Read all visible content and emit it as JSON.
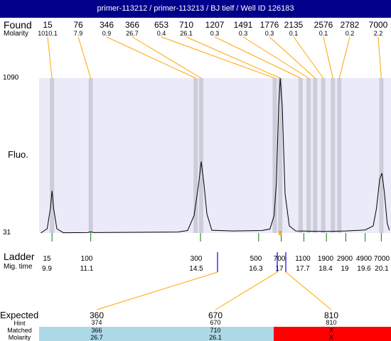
{
  "title": "primer-113212 / primer-113213 / BJ tielf / Well ID 126183",
  "labels": {
    "found": "Found",
    "molarity": "Molarity",
    "fluo": "Fluo.",
    "ladder": "Ladder",
    "mig_time": "Mig. time",
    "expected": "Expected",
    "hint": "Hint",
    "matched": "Matched",
    "molarity2": "Molarity"
  },
  "colors": {
    "title_bar": "#00008b",
    "plot_bg": "#eaeaf8",
    "band": "#c8c8d4",
    "trace": "#000000",
    "found_line": "#ffa500",
    "ladder_tick": "#008000",
    "matched_ok": "#add8e6",
    "matched_fail": "#ff0000",
    "marker": "#0000ff"
  },
  "found_peaks": [
    {
      "size": "15",
      "molarity": "1010.1"
    },
    {
      "size": "76",
      "molarity": "7.9"
    },
    {
      "size": "346",
      "molarity": "0.9"
    },
    {
      "size": "366",
      "molarity": "26.7"
    },
    {
      "size": "653",
      "molarity": "0.4"
    },
    {
      "size": "710",
      "molarity": "26.1"
    },
    {
      "size": "1207",
      "molarity": "0.3"
    },
    {
      "size": "1491",
      "molarity": "0.3"
    },
    {
      "size": "1776",
      "molarity": "0.3"
    },
    {
      "size": "2135",
      "molarity": "0.1"
    },
    {
      "size": "2576",
      "molarity": "0.1"
    },
    {
      "size": "2782",
      "molarity": "0.2"
    },
    {
      "size": "7000",
      "molarity": "2.2"
    }
  ],
  "ladder": [
    {
      "size": "15",
      "time": "9.9"
    },
    {
      "size": "100",
      "time": "11.1"
    },
    {
      "size": "300",
      "time": "14.5"
    },
    {
      "size": "500",
      "time": "16.3"
    },
    {
      "size": "700",
      "time": "17"
    },
    {
      "size": "1100",
      "time": "17.7"
    },
    {
      "size": "1900",
      "time": "18.4"
    },
    {
      "size": "2900",
      "time": "19"
    },
    {
      "size": "4900",
      "time": "19.6"
    },
    {
      "size": "7000",
      "time": "20.1"
    }
  ],
  "expected": [
    {
      "size": "360",
      "hint": "374",
      "matched": "366",
      "molarity": "26.7",
      "status": "ok"
    },
    {
      "size": "670",
      "hint": "670",
      "matched": "710",
      "molarity": "26.1",
      "status": "ok"
    },
    {
      "size": "810",
      "hint": "810",
      "matched": "X",
      "molarity": "X",
      "status": "fail"
    }
  ],
  "chart_data": {
    "type": "line",
    "x_axis": "migration time",
    "y_axis_ticks": [
      "1090",
      "31"
    ],
    "ylim": [
      31,
      1090
    ],
    "ylabel": "Fluo.",
    "series": [
      {
        "points": [
          [
            9.55,
            31
          ],
          [
            9.75,
            60
          ],
          [
            9.85,
            200
          ],
          [
            9.9,
            320
          ],
          [
            9.95,
            200
          ],
          [
            10.05,
            60
          ],
          [
            10.25,
            33
          ],
          [
            11.0,
            34
          ],
          [
            11.1,
            39
          ],
          [
            11.2,
            34
          ],
          [
            13.8,
            38
          ],
          [
            14.1,
            48
          ],
          [
            14.3,
            150
          ],
          [
            14.45,
            380
          ],
          [
            14.52,
            520
          ],
          [
            14.6,
            380
          ],
          [
            14.7,
            160
          ],
          [
            14.85,
            50
          ],
          [
            15.5,
            45
          ],
          [
            16.4,
            48
          ],
          [
            16.65,
            58
          ],
          [
            16.78,
            150
          ],
          [
            16.85,
            380
          ],
          [
            16.92,
            900
          ],
          [
            16.97,
            1090
          ],
          [
            17.03,
            900
          ],
          [
            17.12,
            300
          ],
          [
            17.25,
            80
          ],
          [
            17.45,
            45
          ],
          [
            18.0,
            43
          ],
          [
            18.4,
            42
          ],
          [
            19.0,
            45
          ],
          [
            19.6,
            52
          ],
          [
            19.85,
            80
          ],
          [
            19.95,
            200
          ],
          [
            20.05,
            400
          ],
          [
            20.12,
            440
          ],
          [
            20.2,
            300
          ],
          [
            20.28,
            100
          ],
          [
            20.35,
            50
          ]
        ]
      }
    ]
  }
}
